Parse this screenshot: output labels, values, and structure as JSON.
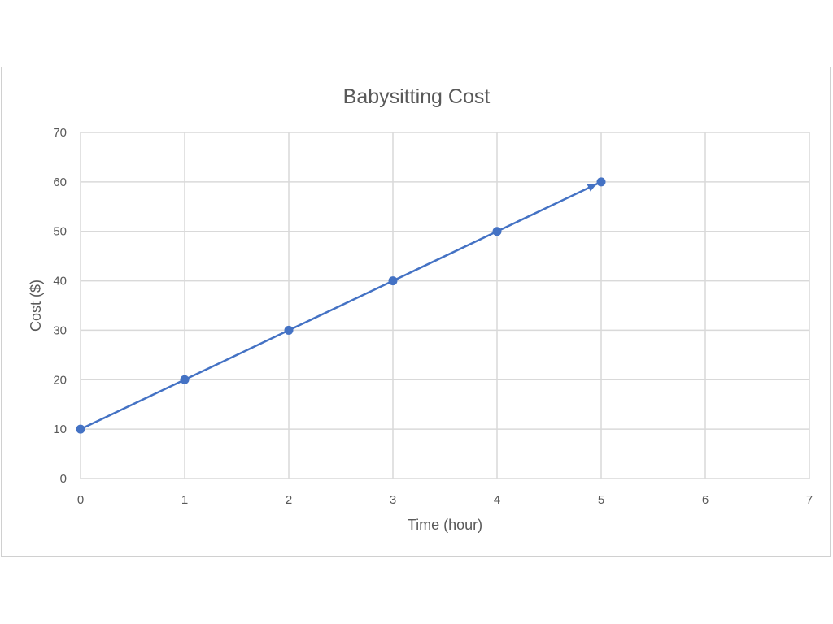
{
  "chart_data": {
    "type": "line",
    "title": "Babysitting Cost",
    "xlabel": "Time (hour)",
    "ylabel": "Cost ($)",
    "xlim": [
      0,
      7
    ],
    "ylim": [
      0,
      70
    ],
    "x_ticks": [
      0,
      1,
      2,
      3,
      4,
      5,
      6,
      7
    ],
    "y_ticks": [
      0,
      10,
      20,
      30,
      40,
      50,
      60,
      70
    ],
    "grid": true,
    "legend": "none",
    "series": [
      {
        "x": [
          0,
          1,
          2,
          3,
          4,
          5
        ],
        "y": [
          10,
          20,
          30,
          40,
          50,
          60
        ],
        "color": "#4472c4",
        "marker": "circle",
        "arrow_end": true
      }
    ]
  }
}
